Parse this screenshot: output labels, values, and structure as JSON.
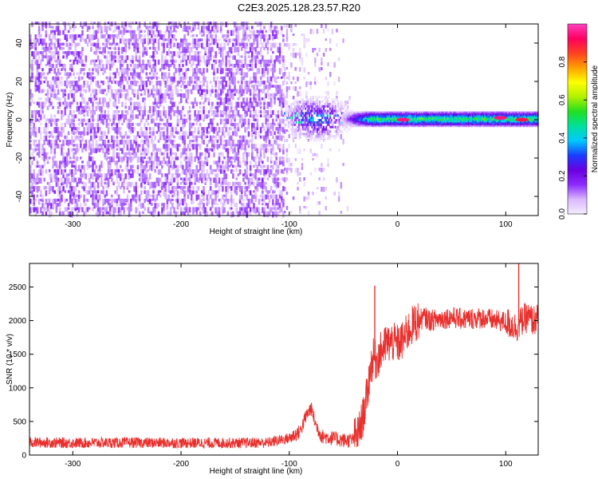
{
  "figure_title": "C2E3.2025.128.23.57.R20",
  "chart_data": [
    {
      "type": "heatmap",
      "title": "C2E3.2025.128.23.57.R20",
      "xlabel": "Height of straight line (km)",
      "ylabel": "Frequency (Hz)",
      "xlim": [
        -340,
        130
      ],
      "ylim": [
        -50,
        50
      ],
      "xticks": [
        -300,
        -200,
        -100,
        0,
        100
      ],
      "yticks": [
        -40,
        -20,
        0,
        20,
        40
      ],
      "colorbar": {
        "label": "Normalized spectral amplitude",
        "range": [
          0,
          1
        ],
        "ticks": [
          0.0,
          0.2,
          0.4,
          0.6,
          0.8
        ],
        "colormap": [
          "#f4ecff",
          "#d9b8ff",
          "#8c2cff",
          "#6a00e0",
          "#1a3cff",
          "#00c8ff",
          "#00e0a0",
          "#20e020",
          "#b0f000",
          "#ffff00",
          "#ffa000",
          "#ff4020",
          "#ff0060",
          "#ff40c0"
        ]
      },
      "regions": [
        {
          "name": "noise",
          "x_range": [
            -340,
            -105
          ],
          "freq_range": [
            -50,
            50
          ],
          "amplitude": 0.1
        },
        {
          "name": "transition",
          "x_range": [
            -105,
            -40
          ],
          "freq_range": [
            -30,
            30
          ],
          "amplitude": 0.2
        },
        {
          "name": "signal-band",
          "x_range": [
            -25,
            130
          ],
          "freq_center": 0,
          "freq_halfwidth": 2.5,
          "amplitude": 0.5
        },
        {
          "name": "peak-1",
          "x": 5,
          "freq": 0,
          "amplitude": 0.95
        },
        {
          "name": "peak-2",
          "x": 95,
          "freq": 1,
          "amplitude": 0.95
        },
        {
          "name": "peak-3",
          "x": 115,
          "freq": 0,
          "amplitude": 0.9
        }
      ]
    },
    {
      "type": "line",
      "title": "",
      "xlabel": "Height of straight line (km)",
      "ylabel": "SNR (10 * v/v)",
      "xlim": [
        -340,
        130
      ],
      "ylim": [
        0,
        2850
      ],
      "xticks": [
        -300,
        -200,
        -100,
        0,
        100
      ],
      "yticks": [
        0,
        500,
        1000,
        1500,
        2000,
        2500
      ],
      "color": "#e8312e",
      "series": [
        {
          "name": "SNR",
          "x": [
            -340,
            -300,
            -250,
            -200,
            -150,
            -120,
            -100,
            -90,
            -85,
            -80,
            -75,
            -70,
            -60,
            -50,
            -42,
            -36,
            -32,
            -28,
            -25,
            -22,
            -20,
            -15,
            -10,
            -5,
            0,
            5,
            10,
            15,
            20,
            25,
            30,
            40,
            50,
            60,
            70,
            80,
            90,
            100,
            110,
            115,
            120,
            125,
            130
          ],
          "values": [
            190,
            180,
            185,
            180,
            180,
            185,
            250,
            350,
            560,
            700,
            430,
            280,
            250,
            220,
            220,
            330,
            560,
            900,
            1300,
            1450,
            1400,
            1550,
            1650,
            1680,
            1650,
            1700,
            1850,
            1950,
            2000,
            2050,
            2000,
            2030,
            2050,
            2020,
            2030,
            2040,
            2000,
            1980,
            1900,
            2000,
            2050,
            2000,
            2020
          ],
          "spikes": [
            {
              "x": -21,
              "value": 2520
            },
            {
              "x": -11,
              "value": 1900
            },
            {
              "x": 112,
              "value": 2850
            }
          ]
        }
      ]
    }
  ]
}
